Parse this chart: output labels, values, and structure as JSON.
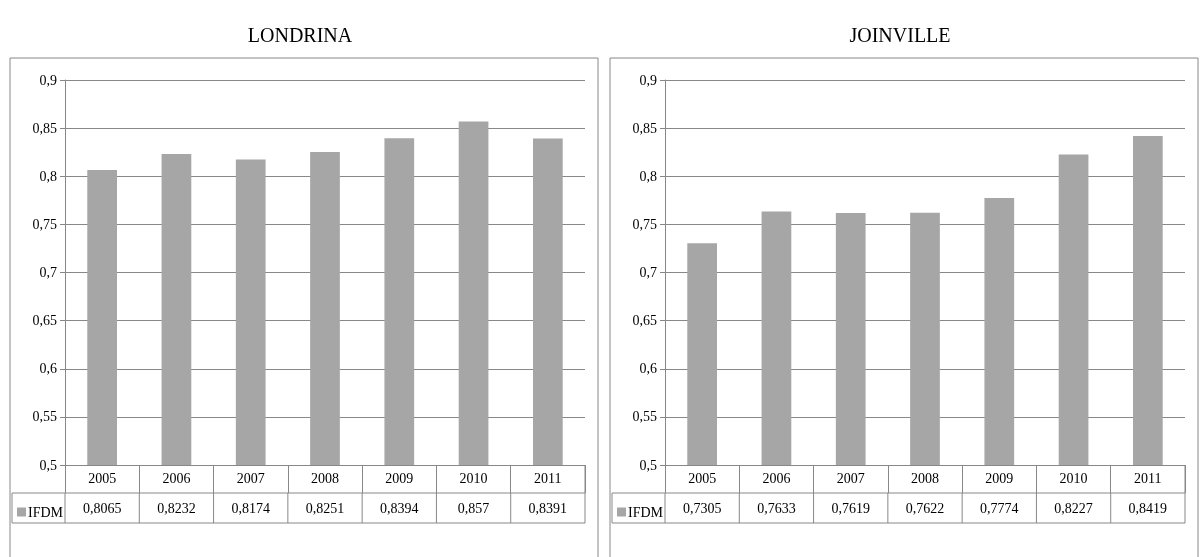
{
  "chart_data": [
    {
      "type": "bar",
      "title": "LONDRINA",
      "categories": [
        "2005",
        "2006",
        "2007",
        "2008",
        "2009",
        "2010",
        "2011"
      ],
      "series": [
        {
          "name": "IFDM",
          "color": "#a6a6a6",
          "values": [
            0.8065,
            0.8232,
            0.8174,
            0.8251,
            0.8394,
            0.857,
            0.8391
          ],
          "value_labels": [
            "0,8065",
            "0,8232",
            "0,8174",
            "0,8251",
            "0,8394",
            "0,857",
            "0,8391"
          ]
        }
      ],
      "ylim": [
        0.5,
        0.9
      ],
      "yticks": [
        {
          "value": 0.5,
          "label": "0,5"
        },
        {
          "value": 0.55,
          "label": "0,55"
        },
        {
          "value": 0.6,
          "label": "0,6"
        },
        {
          "value": 0.65,
          "label": "0,65"
        },
        {
          "value": 0.7,
          "label": "0,7"
        },
        {
          "value": 0.75,
          "label": "0,75"
        },
        {
          "value": 0.8,
          "label": "0,8"
        },
        {
          "value": 0.85,
          "label": "0,85"
        },
        {
          "value": 0.9,
          "label": "0,9"
        }
      ],
      "grid": "y",
      "legend": "bottom left"
    },
    {
      "type": "bar",
      "title": "JOINVILLE",
      "categories": [
        "2005",
        "2006",
        "2007",
        "2008",
        "2009",
        "2010",
        "2011"
      ],
      "series": [
        {
          "name": "IFDM",
          "color": "#a6a6a6",
          "values": [
            0.7305,
            0.7633,
            0.7619,
            0.7622,
            0.7774,
            0.8227,
            0.8419
          ],
          "value_labels": [
            "0,7305",
            "0,7633",
            "0,7619",
            "0,7622",
            "0,7774",
            "0,8227",
            "0,8419"
          ]
        }
      ],
      "ylim": [
        0.5,
        0.9
      ],
      "yticks": [
        {
          "value": 0.5,
          "label": "0,5"
        },
        {
          "value": 0.55,
          "label": "0,55"
        },
        {
          "value": 0.6,
          "label": "0,6"
        },
        {
          "value": 0.65,
          "label": "0,65"
        },
        {
          "value": 0.7,
          "label": "0,7"
        },
        {
          "value": 0.75,
          "label": "0,75"
        },
        {
          "value": 0.8,
          "label": "0,8"
        },
        {
          "value": 0.85,
          "label": "0,85"
        },
        {
          "value": 0.9,
          "label": "0,9"
        }
      ],
      "grid": "y",
      "legend": "bottom left"
    }
  ]
}
